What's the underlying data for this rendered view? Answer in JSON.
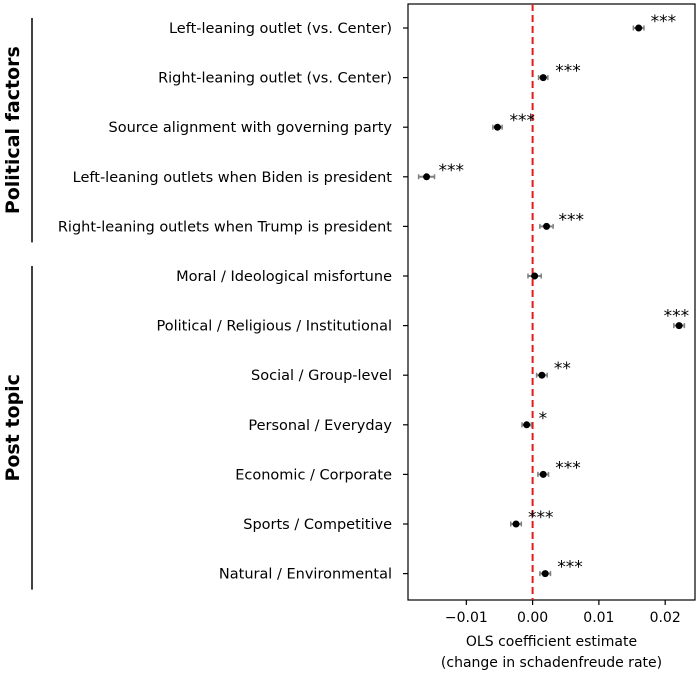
{
  "chart_data": {
    "type": "scatter",
    "subtype": "coefficient-plot",
    "xlabel_line1": "OLS coefficient estimate",
    "xlabel_line2": "(change in schadenfreude rate)",
    "xlim": [
      -0.0188,
      0.0245
    ],
    "xticks": [
      -0.01,
      0.0,
      0.01,
      0.02
    ],
    "xtick_labels": [
      "−0.01",
      "0.00",
      "0.01",
      "0.02"
    ],
    "reference_line": {
      "x": 0,
      "style": "dashed",
      "color": "#e31a1c"
    },
    "point_color": "#000000",
    "ci_color": "#808080",
    "groups": [
      {
        "label": "Political factors",
        "start": 0,
        "end": 4
      },
      {
        "label": "Post topic",
        "start": 5,
        "end": 11
      }
    ],
    "items": [
      {
        "label": "Left-leaning outlet (vs. Center)",
        "estimate": 0.016,
        "ci": [
          0.0152,
          0.0168
        ],
        "sig": "***"
      },
      {
        "label": "Right-leaning outlet (vs. Center)",
        "estimate": 0.0016,
        "ci": [
          0.0009,
          0.0023
        ],
        "sig": "***"
      },
      {
        "label": "Source alignment with governing party",
        "estimate": -0.0053,
        "ci": [
          -0.006,
          -0.0046
        ],
        "sig": "***"
      },
      {
        "label": "Left-leaning outlets when Biden is president",
        "estimate": -0.016,
        "ci": [
          -0.0172,
          -0.0148
        ],
        "sig": "***"
      },
      {
        "label": "Right-leaning outlets when Trump is president",
        "estimate": 0.0021,
        "ci": [
          0.0011,
          0.0031
        ],
        "sig": "***"
      },
      {
        "label": "Moral / Ideological misfortune",
        "estimate": 0.0003,
        "ci": [
          -0.0007,
          0.0013
        ],
        "sig": ""
      },
      {
        "label": "Political / Religious / Institutional",
        "estimate": 0.0221,
        "ci": [
          0.0213,
          0.0229
        ],
        "sig": "***"
      },
      {
        "label": "Social / Group-level",
        "estimate": 0.0014,
        "ci": [
          0.0006,
          0.0022
        ],
        "sig": "**"
      },
      {
        "label": "Personal / Everyday",
        "estimate": -0.0009,
        "ci": [
          -0.0016,
          -0.0002
        ],
        "sig": "*"
      },
      {
        "label": "Economic / Corporate",
        "estimate": 0.0016,
        "ci": [
          0.0008,
          0.0024
        ],
        "sig": "***"
      },
      {
        "label": "Sports / Competitive",
        "estimate": -0.0025,
        "ci": [
          -0.0033,
          -0.0017
        ],
        "sig": "***"
      },
      {
        "label": "Natural / Environmental",
        "estimate": 0.0019,
        "ci": [
          0.0011,
          0.0027
        ],
        "sig": "***"
      }
    ]
  }
}
